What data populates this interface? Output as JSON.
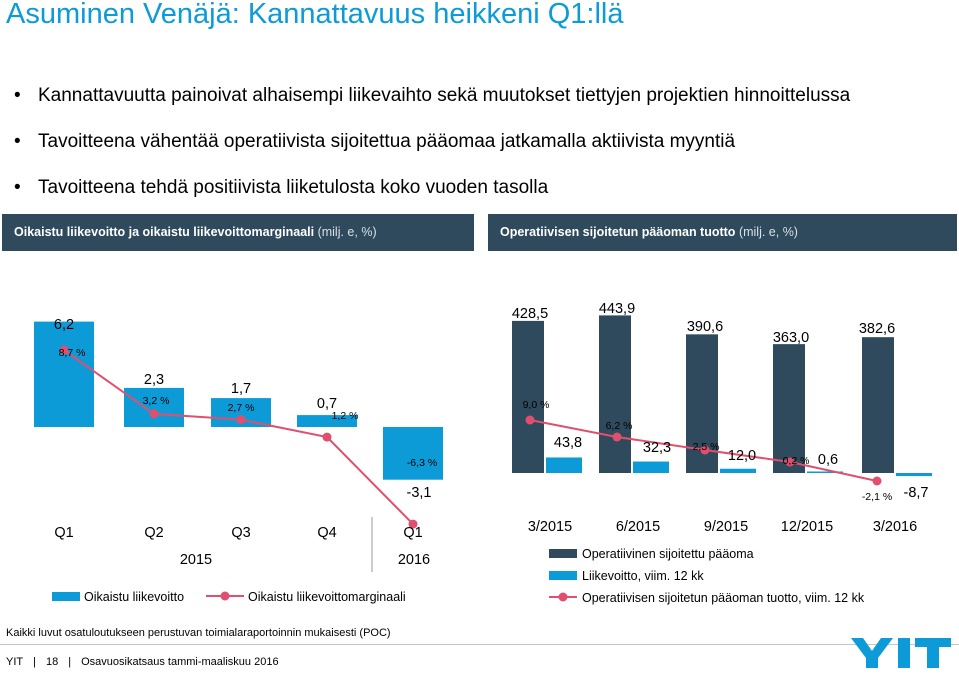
{
  "title": "Asuminen Venäjä: Kannattavuus heikkeni Q1:llä",
  "bullets": [
    "Kannattavuutta painoivat alhaisempi liikevaihto sekä muutokset tiettyjen projektien hinnoittelussa",
    "Tavoitteena vähentää operatiivista sijoitettua pääomaa jatkamalla aktiivista myyntiä",
    "Tavoitteena tehdä positiivista liiketulosta koko vuoden tasolla"
  ],
  "left_panel": {
    "title": "Oikaistu liikevoitto ja oikaistu liikevoittomarginaali",
    "unit": "(milj. e, %)"
  },
  "right_panel": {
    "title": "Operatiivisen sijoitetun pääoman tuotto",
    "unit": "(milj. e, %)"
  },
  "colors": {
    "accent_blue": "#0d9bd8",
    "dark_navy": "#2e4a5c",
    "line_pink": "#e0506e"
  },
  "chart_data": [
    {
      "type": "bar",
      "title": "Oikaistu liikevoitto ja oikaistu liikevoittomarginaali",
      "categories": [
        "Q1",
        "Q2",
        "Q3",
        "Q4",
        "Q1"
      ],
      "year_groups": [
        {
          "label": "2015",
          "categories": [
            "Q1",
            "Q2",
            "Q3",
            "Q4"
          ]
        },
        {
          "label": "2016",
          "categories": [
            "Q1"
          ]
        }
      ],
      "series": [
        {
          "name": "Oikaistu liikevoitto",
          "kind": "bar",
          "color": "#0d9bd8",
          "values": [
            6.2,
            2.3,
            1.7,
            0.7,
            -3.1
          ],
          "labels": [
            "6,2",
            "2,3",
            "1,7",
            "0,7",
            "-3,1"
          ]
        },
        {
          "name": "Oikaistu liikevoittomarginaali",
          "kind": "line",
          "color": "#e0506e",
          "values": [
            8.7,
            3.2,
            2.7,
            1.2,
            -6.3
          ],
          "labels": [
            "8,7 %",
            "3,2 %",
            "2,7 %",
            "1,2 %",
            "-6,3 %"
          ]
        }
      ],
      "legend": "bottom"
    },
    {
      "type": "bar",
      "title": "Operatiivisen sijoitetun pääoman tuotto",
      "categories": [
        "3/2015",
        "6/2015",
        "9/2015",
        "12/2015",
        "3/2016"
      ],
      "series": [
        {
          "name": "Operatiivinen sijoitettu pääoma",
          "kind": "bar",
          "color": "#2e4a5c",
          "values": [
            428.5,
            443.9,
            390.6,
            363.0,
            382.6
          ],
          "labels": [
            "428,5",
            "443,9",
            "390,6",
            "363,0",
            "382,6"
          ]
        },
        {
          "name": "Liikevoitto, viim. 12 kk",
          "kind": "bar",
          "color": "#0d9bd8",
          "values": [
            43.8,
            32.3,
            12.0,
            0.6,
            -8.7
          ],
          "labels": [
            "43,8",
            "32,3",
            "12,0",
            "0,6",
            "-8,7"
          ]
        },
        {
          "name": "Operatiivisen sijoitetun pääoman tuotto, viim. 12 kk",
          "kind": "line",
          "color": "#e0506e",
          "values": [
            9.0,
            6.2,
            2.5,
            0.2,
            -2.1
          ],
          "labels": [
            "9,0 %",
            "6,2 %",
            "2,5 %",
            "0,2 %",
            "-2,1 %"
          ]
        }
      ],
      "legend": "bottom"
    }
  ],
  "footnote": "Kaikki luvut osatuloutukseen perustuvan toimialaraportoinnin mukaisesti (POC)",
  "footer": {
    "company": "YIT",
    "page": "18",
    "doc": "Osavuosikatsaus tammi-maaliskuu 2016"
  },
  "logo": {
    "icon": "yit-logo-icon",
    "text": "YIT"
  }
}
